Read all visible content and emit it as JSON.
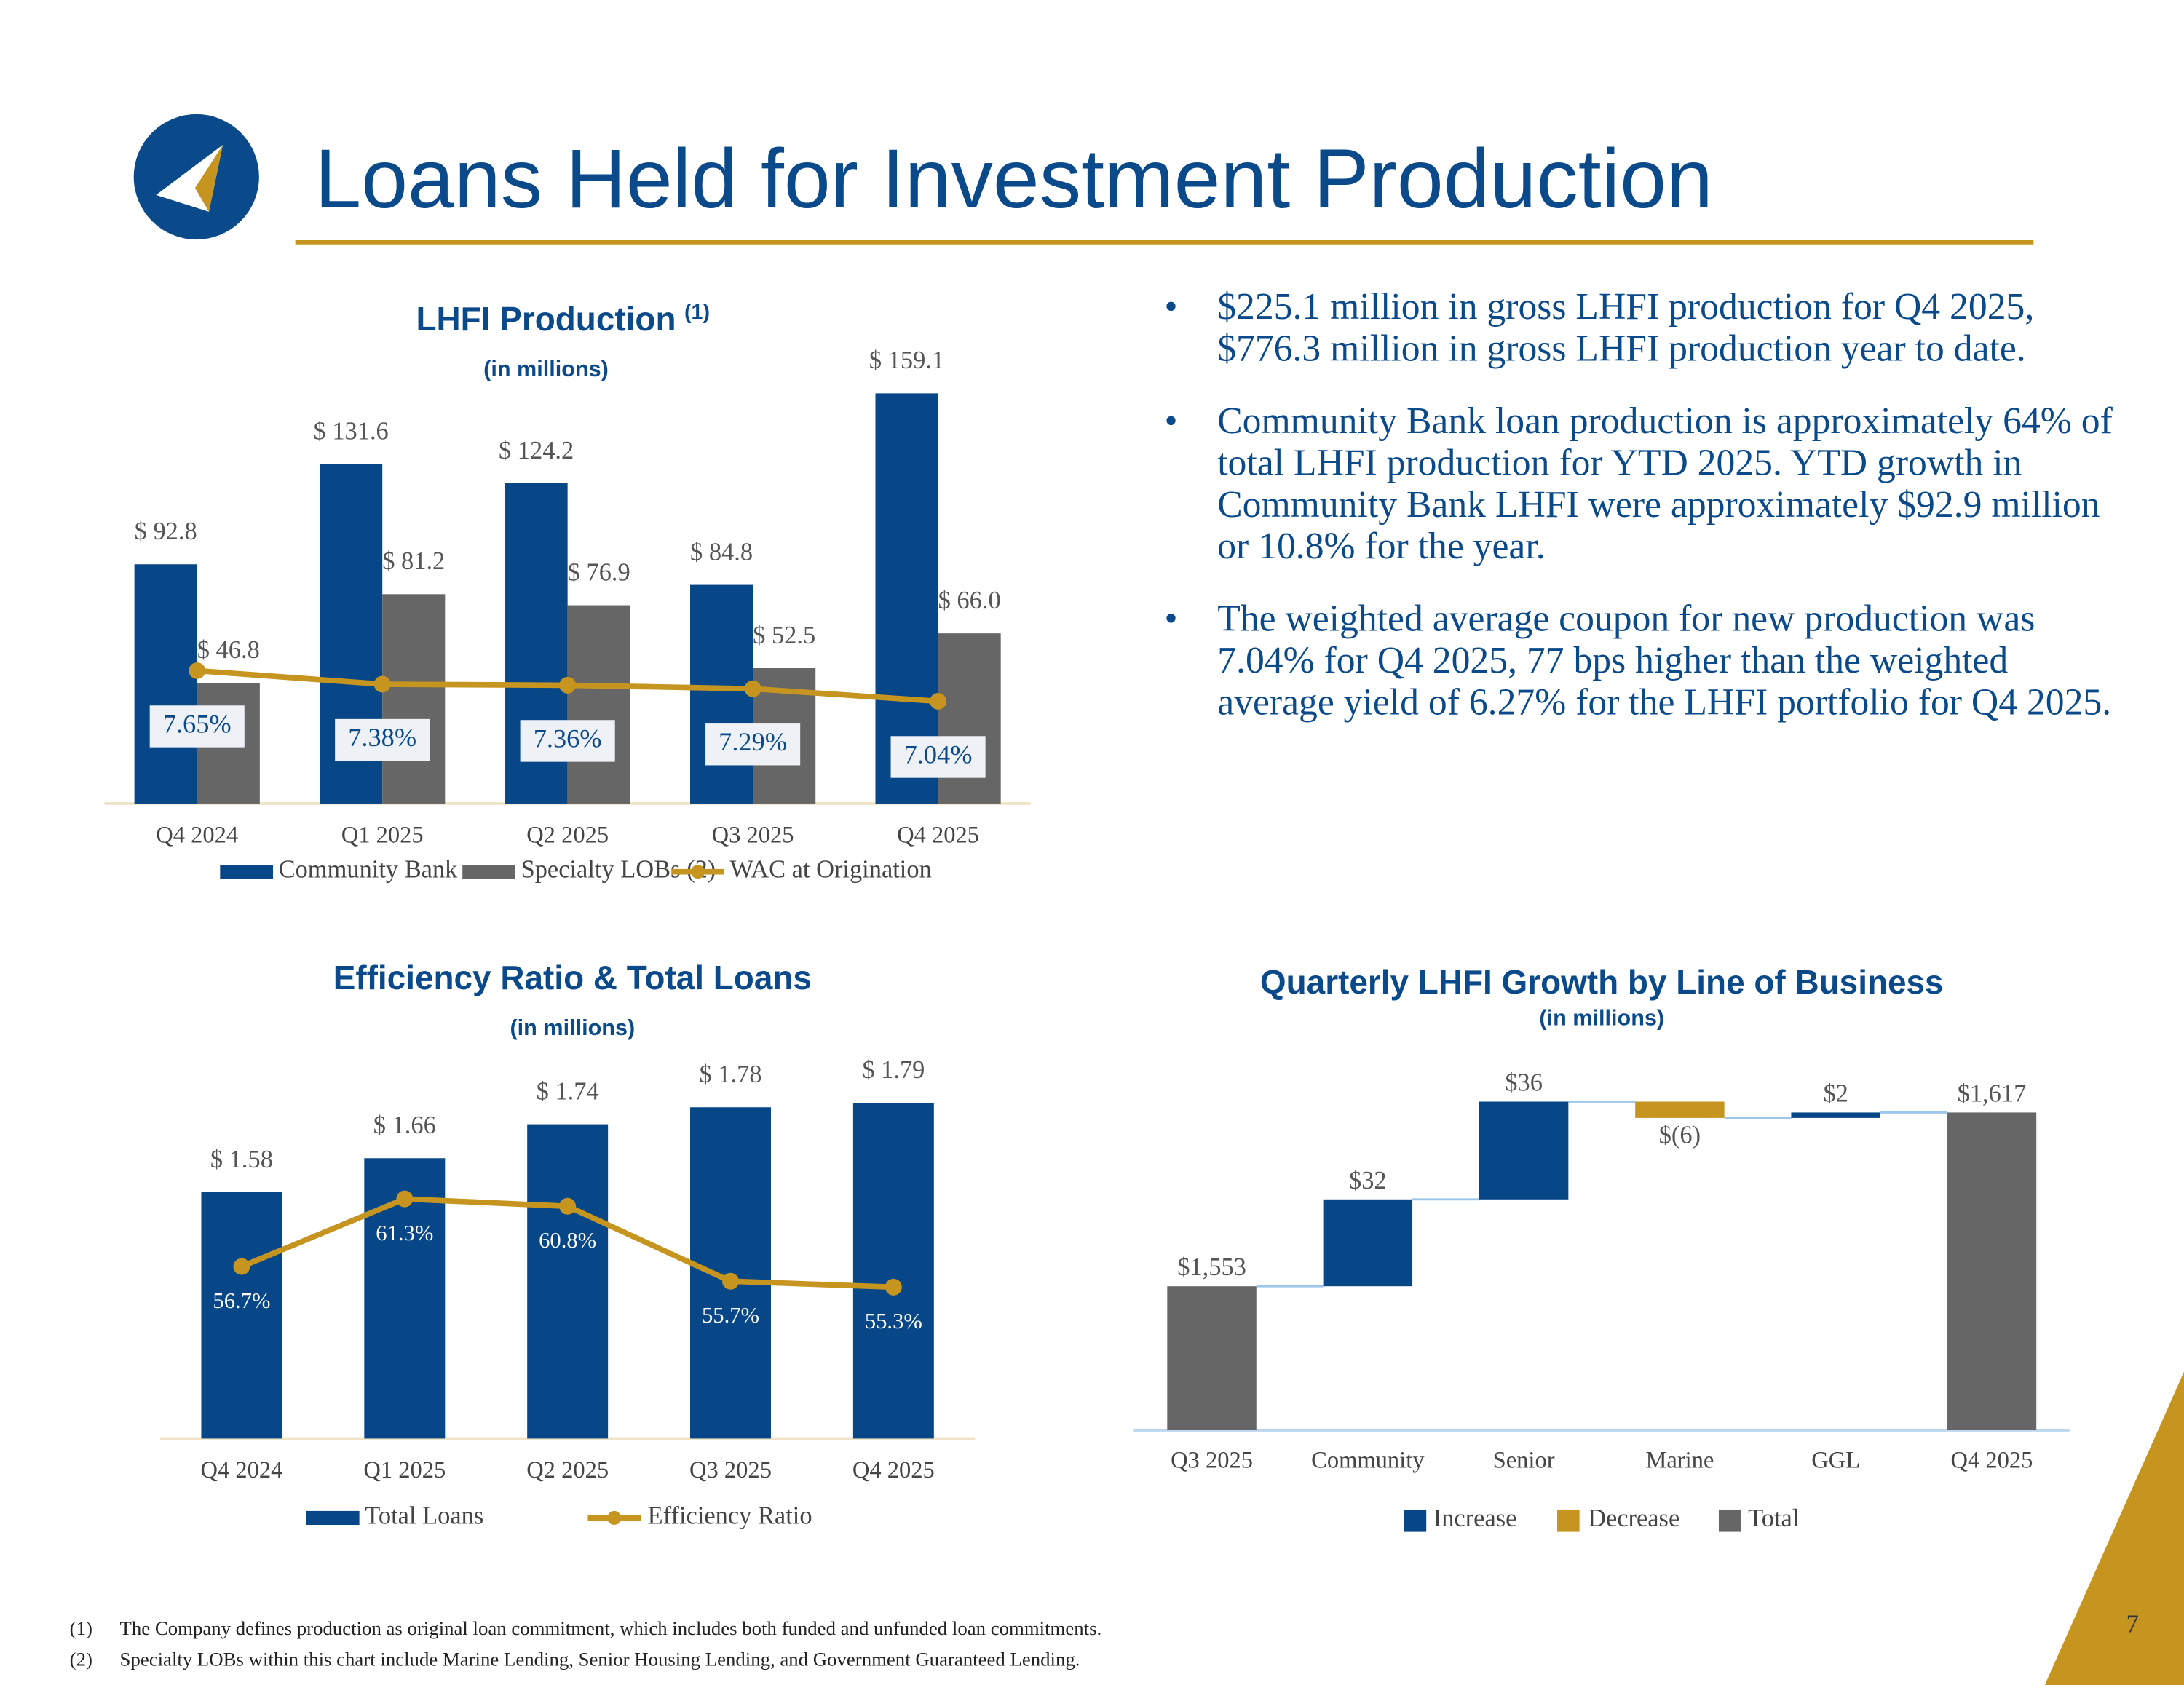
{
  "title": "Loans Held for Investment Production",
  "bullets": [
    "$225.1 million in gross LHFI production for Q4 2025, $776.3 million in gross LHFI production year to date.",
    "Community Bank loan production is approximately 64% of total LHFI production for YTD 2025.  YTD growth in Community Bank LHFI were approximately $92.9 million or 10.8% for the year.",
    "The weighted average coupon for new production was 7.04% for Q4 2025, 77 bps higher than the weighted average yield of 6.27% for the LHFI portfolio for Q4 2025."
  ],
  "footnotes": [
    {
      "marker": "(1)",
      "text": "The Company defines production as original loan commitment, which includes both funded and unfunded loan commitments."
    },
    {
      "marker": "(2)",
      "text": "Specialty LOBs within this chart include Marine Lending, Senior Housing Lending, and Government Guaranteed Lending."
    }
  ],
  "page_number": 7,
  "chart_data": [
    {
      "type": "bar",
      "title": "LHFI Production",
      "title_note": "(1)",
      "subtitle": "(in millions)",
      "categories": [
        "Q4 2024",
        "Q1 2025",
        "Q2 2025",
        "Q3 2025",
        "Q4 2025"
      ],
      "ylim": [
        0,
        175
      ],
      "y2lim": [
        5,
        14
      ],
      "series": [
        {
          "name": "Community Bank",
          "color": "#074787",
          "values": [
            92.8,
            131.6,
            124.2,
            84.8,
            159.1
          ],
          "value_labels": [
            "$ 92.8",
            "$ 131.6",
            "$ 124.2",
            "$ 84.8",
            "$ 159.1"
          ]
        },
        {
          "name": "Specialty LOBs (2)",
          "color": "#666666",
          "values": [
            46.8,
            81.2,
            76.9,
            52.5,
            66.0
          ],
          "value_labels": [
            "$ 46.8",
            "$ 81.2",
            "$ 76.9",
            "$ 52.5",
            "$ 66.0"
          ]
        },
        {
          "name": "WAC at Origination",
          "color": "#c59520",
          "axis": "y2",
          "values": [
            7.65,
            7.38,
            7.36,
            7.29,
            7.04
          ],
          "value_labels": [
            "7.65%",
            "7.38%",
            "7.36%",
            "7.29%",
            "7.04%"
          ]
        }
      ]
    },
    {
      "type": "bar",
      "title": "Efficiency Ratio & Total Loans",
      "subtitle": "(in millions)",
      "categories": [
        "Q4 2024",
        "Q1 2025",
        "Q2 2025",
        "Q3 2025",
        "Q4 2025"
      ],
      "ylim": [
        1.0,
        1.9
      ],
      "y2lim": [
        45,
        71
      ],
      "series": [
        {
          "name": "Total Loans",
          "color": "#074787",
          "values": [
            1.58,
            1.66,
            1.74,
            1.78,
            1.79
          ],
          "value_labels": [
            "$ 1.58",
            "$ 1.66",
            "$ 1.74",
            "$ 1.78",
            "$ 1.79"
          ]
        },
        {
          "name": "Efficiency Ratio",
          "color": "#c59520",
          "axis": "y2",
          "values": [
            56.7,
            61.3,
            60.8,
            55.7,
            55.3
          ],
          "value_labels": [
            "56.7%",
            "61.3%",
            "60.8%",
            "55.7%",
            "55.3%"
          ]
        }
      ]
    },
    {
      "type": "waterfall",
      "title": "Quarterly LHFI Growth by Line of Business",
      "subtitle": "(in millions)",
      "categories": [
        "Q3 2025",
        "Community",
        "Senior",
        "Marine",
        "GGL",
        "Q4 2025"
      ],
      "values": [
        1553,
        32,
        36,
        -6,
        2,
        1617
      ],
      "value_labels": [
        "$1,553",
        "$32",
        "$36",
        "$(6)",
        "$2",
        "$1,617"
      ],
      "ylim": [
        1500,
        1640
      ],
      "legend": [
        {
          "name": "Increase",
          "color": "#074787"
        },
        {
          "name": "Decrease",
          "color": "#c59520"
        },
        {
          "name": "Total",
          "color": "#666666"
        }
      ]
    }
  ]
}
